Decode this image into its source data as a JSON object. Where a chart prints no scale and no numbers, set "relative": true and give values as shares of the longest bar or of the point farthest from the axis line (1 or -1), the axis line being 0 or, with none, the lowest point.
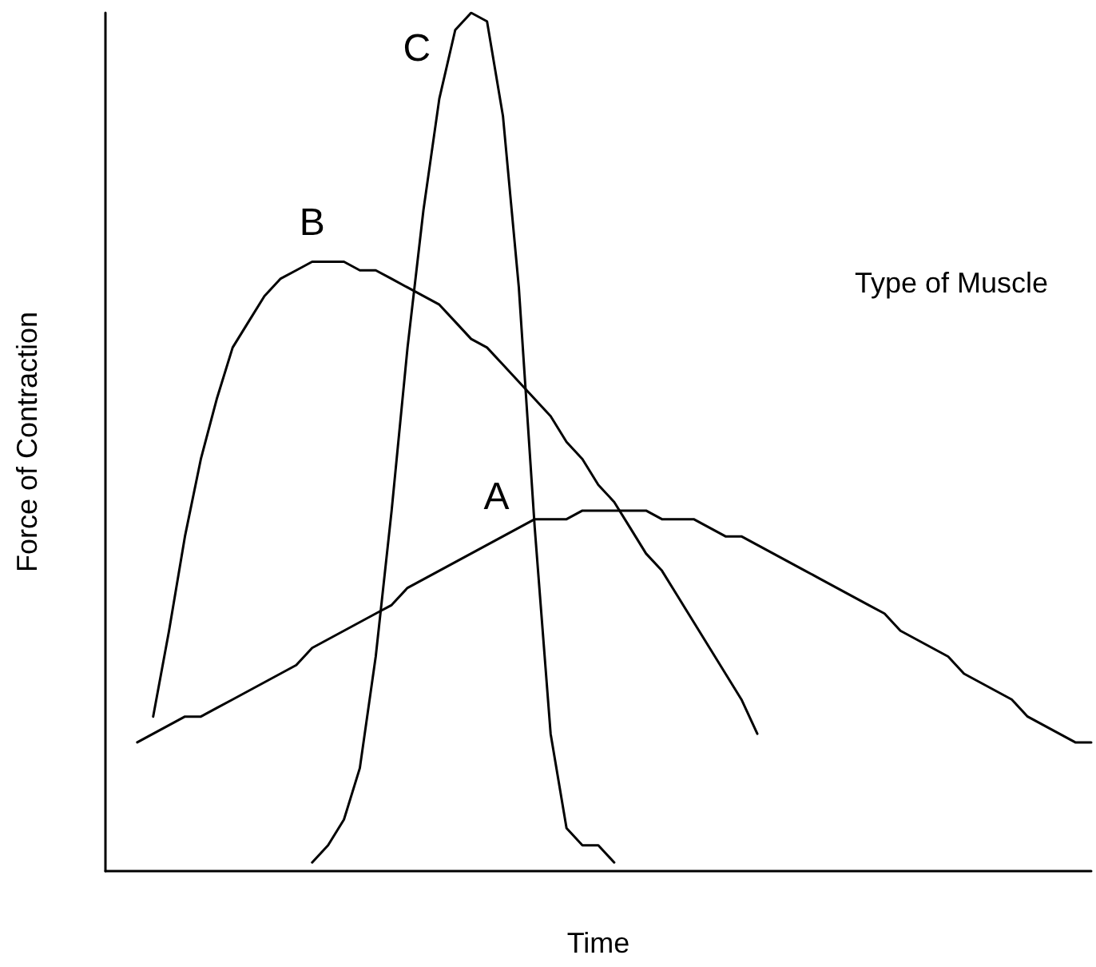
{
  "chart_data": {
    "type": "line",
    "relative": true,
    "xlabel": "Time",
    "ylabel": "Force of Contraction",
    "annotations": [
      "Type of Muscle"
    ],
    "marker": "none",
    "line_style": "solid",
    "grid": false,
    "categories": [
      null,
      null,
      null,
      null,
      null,
      null,
      null,
      null,
      null,
      null,
      null,
      null,
      null,
      null,
      null,
      null,
      null,
      null,
      null,
      null,
      null,
      null,
      null,
      null,
      null,
      null,
      null,
      null,
      null,
      null,
      null,
      null,
      null,
      null,
      null,
      null,
      null,
      null,
      null,
      null,
      null,
      null,
      null,
      null,
      null,
      null,
      null,
      null,
      null,
      null,
      null,
      null,
      null,
      null,
      null,
      null,
      null,
      null,
      null,
      null,
      null,
      null,
      null
    ],
    "series": [
      {
        "name": "A",
        "color": "#000000",
        "values": [
          null,
          null,
          0.15,
          0.16,
          0.17,
          0.18,
          0.18,
          0.19,
          0.2,
          0.21,
          0.22,
          0.23,
          0.24,
          0.26,
          0.27,
          0.28,
          0.29,
          0.3,
          0.31,
          0.33,
          0.34,
          0.35,
          0.36,
          0.37,
          0.38,
          0.39,
          0.4,
          0.41,
          0.41,
          0.41,
          0.42,
          0.42,
          0.42,
          0.42,
          0.42,
          0.41,
          0.41,
          0.41,
          0.4,
          0.39,
          0.39,
          0.38,
          0.37,
          0.36,
          0.35,
          0.34,
          0.33,
          0.32,
          0.31,
          0.3,
          0.28,
          0.27,
          0.26,
          0.25,
          0.23,
          0.22,
          0.21,
          0.2,
          0.18,
          0.17,
          0.16,
          0.15,
          0.15
        ]
      },
      {
        "name": "B",
        "color": "#000000",
        "values": [
          null,
          null,
          null,
          0.18,
          0.28,
          0.39,
          0.48,
          0.55,
          0.61,
          0.64,
          0.67,
          0.69,
          0.7,
          0.71,
          0.71,
          0.71,
          0.7,
          0.7,
          0.69,
          0.68,
          0.67,
          0.66,
          0.64,
          0.62,
          0.61,
          0.59,
          0.57,
          0.55,
          0.53,
          0.5,
          0.48,
          0.45,
          0.43,
          0.4,
          0.37,
          0.35,
          0.32,
          0.29,
          0.26,
          0.23,
          0.2,
          0.16,
          null,
          null,
          null,
          null,
          null,
          null,
          null,
          null,
          null,
          null,
          null,
          null,
          null,
          null,
          null,
          null,
          null,
          null,
          null,
          null,
          null
        ]
      },
      {
        "name": "C",
        "color": "#000000",
        "values": [
          null,
          null,
          null,
          null,
          null,
          null,
          null,
          null,
          null,
          null,
          null,
          null,
          null,
          0.01,
          0.03,
          0.06,
          0.12,
          0.25,
          0.42,
          0.61,
          0.77,
          0.9,
          0.98,
          1.0,
          0.99,
          0.88,
          0.68,
          0.4,
          0.16,
          0.05,
          0.03,
          0.03,
          0.01,
          null,
          null,
          null,
          null,
          null,
          null,
          null,
          null,
          null,
          null,
          null,
          null,
          null,
          null,
          null,
          null,
          null,
          null,
          null,
          null,
          null,
          null,
          null,
          null,
          null,
          null,
          null,
          null,
          null,
          null
        ]
      }
    ]
  }
}
